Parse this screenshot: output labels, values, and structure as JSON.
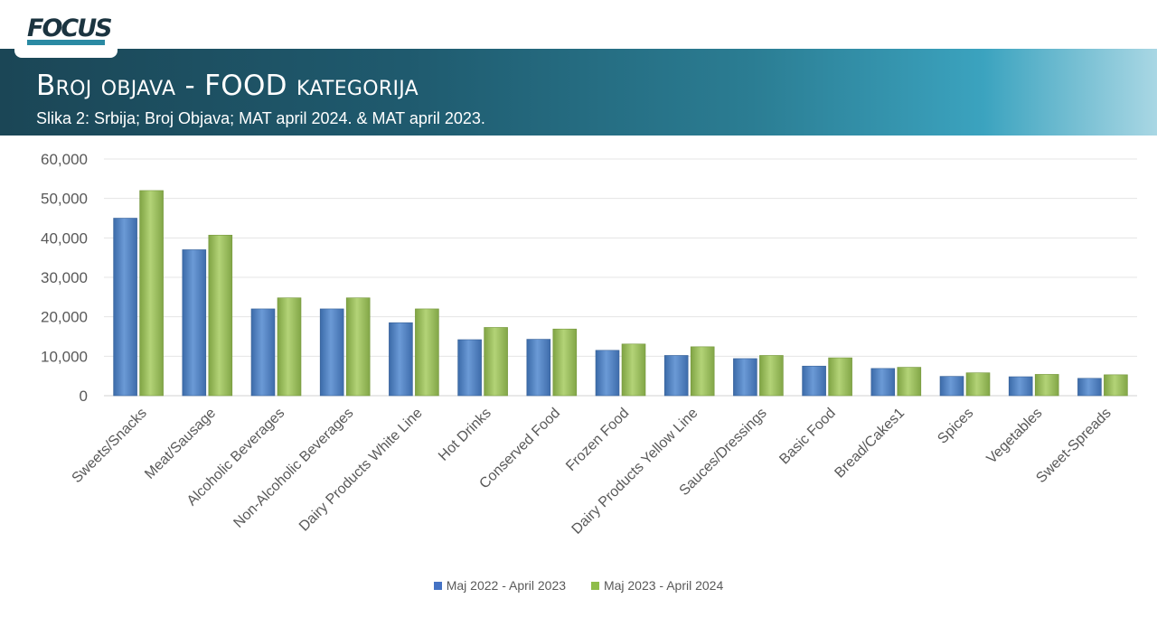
{
  "logo": {
    "text": "FOCUS"
  },
  "header": {
    "title": "Broj objava - FOOD kategorija",
    "subtitle": "Slika 2: Srbija; Broj Objava; MAT april 2024. & MAT april 2023."
  },
  "chart_data": {
    "type": "bar",
    "categories": [
      "Sweets/Snacks",
      "Meat/Sausage",
      "Alcoholic Beverages",
      "Non-Alcoholic Beverages",
      "Dairy Products White Line",
      "Hot Drinks",
      "Conserved Food",
      "Frozen Food",
      "Dairy Products Yellow Line",
      "Sauces/Dressings",
      "Basic Food",
      "Bread/Cakes1",
      "Spices",
      "Vegetables",
      "Sweet-Spreads"
    ],
    "series": [
      {
        "name": "Maj 2022 - April 2023",
        "color": "#4f81bd",
        "values": [
          45000,
          37000,
          22000,
          22000,
          18500,
          14200,
          14300,
          11500,
          10200,
          9400,
          7500,
          6900,
          4900,
          4800,
          4400
        ]
      },
      {
        "name": "Maj 2023 - April 2024",
        "color": "#9bbb59",
        "values": [
          52000,
          40700,
          24800,
          24800,
          22000,
          17300,
          16900,
          13100,
          12400,
          10200,
          9600,
          7200,
          5800,
          5400,
          5300
        ]
      }
    ],
    "y_ticks": [
      "0",
      "10,000",
      "20,000",
      "30,000",
      "40,000",
      "50,000",
      "60,000"
    ],
    "ylim": [
      0,
      60000
    ],
    "grid": true,
    "legend": "bottom"
  }
}
